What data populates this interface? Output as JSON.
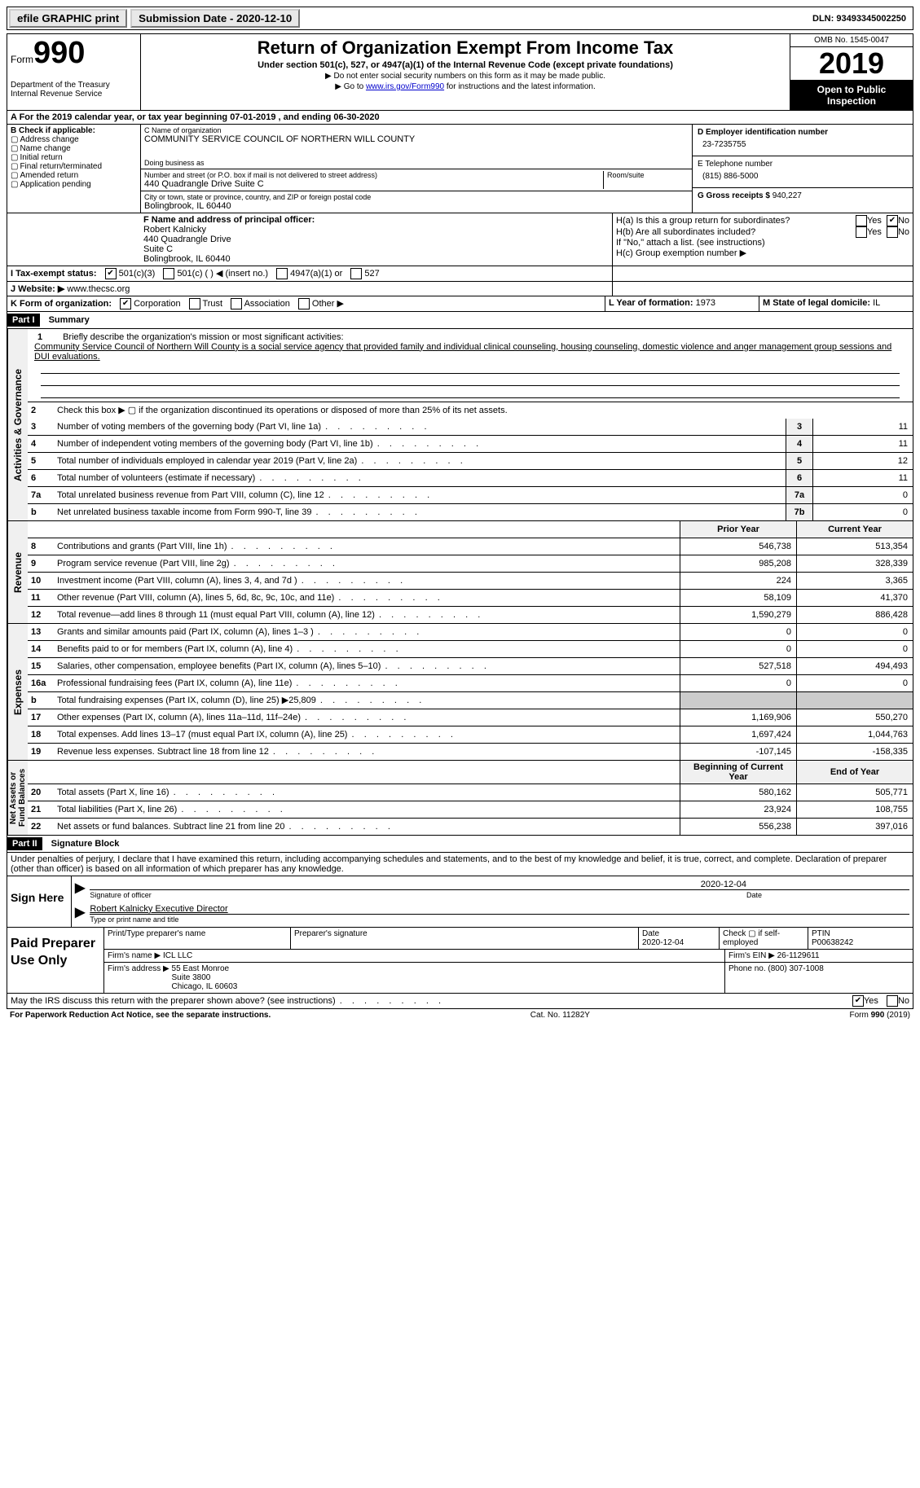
{
  "top": {
    "efile": "efile GRAPHIC print",
    "submission": "Submission Date - 2020-12-10",
    "dln_label": "DLN:",
    "dln": "93493345002250"
  },
  "header": {
    "form": "Form",
    "form_num": "990",
    "dept": "Department of the Treasury\nInternal Revenue Service",
    "title": "Return of Organization Exempt From Income Tax",
    "sub": "Under section 501(c), 527, or 4947(a)(1) of the Internal Revenue Code (except private foundations)",
    "note1": "▶ Do not enter social security numbers on this form as it may be made public.",
    "note2_pre": "▶ Go to ",
    "note2_link": "www.irs.gov/Form990",
    "note2_post": " for instructions and the latest information.",
    "omb": "OMB No. 1545-0047",
    "year": "2019",
    "inspection": "Open to Public Inspection"
  },
  "line_a": "A For the 2019 calendar year, or tax year beginning 07-01-2019    , and ending 06-30-2020",
  "block_b": {
    "title": "B Check if applicable:",
    "items": [
      "Address change",
      "Name change",
      "Initial return",
      "Final return/terminated",
      "Amended return",
      "Application pending"
    ]
  },
  "block_c": {
    "name_label": "C Name of organization",
    "name": "COMMUNITY SERVICE COUNCIL OF NORTHERN WILL COUNTY",
    "dba": "Doing business as",
    "street_label": "Number and street (or P.O. box if mail is not delivered to street address)",
    "street": "440 Quadrangle Drive Suite C",
    "room": "Room/suite",
    "city_label": "City or town, state or province, country, and ZIP or foreign postal code",
    "city": "Bolingbrook, IL  60440"
  },
  "block_d": {
    "label": "D Employer identification number",
    "value": "23-7235755"
  },
  "block_e": {
    "label": "E Telephone number",
    "value": "(815) 886-5000"
  },
  "block_g": {
    "label": "G Gross receipts $",
    "value": "940,227"
  },
  "block_f": {
    "label": "F  Name and address of principal officer:",
    "name": "Robert Kalnicky",
    "addr1": "440 Quadrangle Drive",
    "addr2": "Suite C",
    "addr3": "Bolingbrook, IL  60440"
  },
  "block_h": {
    "ha": "H(a)  Is this a group return for subordinates?",
    "hb": "H(b)  Are all subordinates included?",
    "note": "If \"No,\" attach a list. (see instructions)",
    "hc": "H(c)  Group exemption number ▶"
  },
  "tax_status": {
    "label": "I  Tax-exempt status:",
    "opts": [
      "501(c)(3)",
      "501(c) (  ) ◀ (insert no.)",
      "4947(a)(1) or",
      "527"
    ]
  },
  "website": {
    "label": "J  Website: ▶",
    "value": "www.thecsc.org"
  },
  "line_k": {
    "label": "K Form of organization:",
    "opts": [
      "Corporation",
      "Trust",
      "Association",
      "Other ▶"
    ]
  },
  "line_l": {
    "label": "L Year of formation:",
    "value": "1973"
  },
  "line_m": {
    "label": "M State of legal domicile:",
    "value": "IL"
  },
  "part1": {
    "title": "Summary",
    "l1_label": "Briefly describe the organization's mission or most significant activities:",
    "l1_text": "Community Service Council of Northern Will County is a social service agency that provided family and individual clinical counseling, housing counseling, domestic violence and anger management group sessions and DUI evaluations.",
    "l2": "Check this box ▶ ▢  if the organization discontinued its operations or disposed of more than 25% of its net assets.",
    "lines_simple": [
      {
        "n": "3",
        "t": "Number of voting members of the governing body (Part VI, line 1a)",
        "box": "3",
        "v": "11"
      },
      {
        "n": "4",
        "t": "Number of independent voting members of the governing body (Part VI, line 1b)",
        "box": "4",
        "v": "11"
      },
      {
        "n": "5",
        "t": "Total number of individuals employed in calendar year 2019 (Part V, line 2a)",
        "box": "5",
        "v": "12"
      },
      {
        "n": "6",
        "t": "Total number of volunteers (estimate if necessary)",
        "box": "6",
        "v": "11"
      },
      {
        "n": "7a",
        "t": "Total unrelated business revenue from Part VIII, column (C), line 12",
        "box": "7a",
        "v": "0"
      },
      {
        "n": "b",
        "t": "Net unrelated business taxable income from Form 990-T, line 39",
        "box": "7b",
        "v": "0"
      }
    ],
    "col_prior": "Prior Year",
    "col_current": "Current Year",
    "revenue": [
      {
        "n": "8",
        "t": "Contributions and grants (Part VIII, line 1h)",
        "p": "546,738",
        "c": "513,354"
      },
      {
        "n": "9",
        "t": "Program service revenue (Part VIII, line 2g)",
        "p": "985,208",
        "c": "328,339"
      },
      {
        "n": "10",
        "t": "Investment income (Part VIII, column (A), lines 3, 4, and 7d )",
        "p": "224",
        "c": "3,365"
      },
      {
        "n": "11",
        "t": "Other revenue (Part VIII, column (A), lines 5, 6d, 8c, 9c, 10c, and 11e)",
        "p": "58,109",
        "c": "41,370"
      },
      {
        "n": "12",
        "t": "Total revenue—add lines 8 through 11 (must equal Part VIII, column (A), line 12)",
        "p": "1,590,279",
        "c": "886,428"
      }
    ],
    "expenses": [
      {
        "n": "13",
        "t": "Grants and similar amounts paid (Part IX, column (A), lines 1–3 )",
        "p": "0",
        "c": "0"
      },
      {
        "n": "14",
        "t": "Benefits paid to or for members (Part IX, column (A), line 4)",
        "p": "0",
        "c": "0"
      },
      {
        "n": "15",
        "t": "Salaries, other compensation, employee benefits (Part IX, column (A), lines 5–10)",
        "p": "527,518",
        "c": "494,493"
      },
      {
        "n": "16a",
        "t": "Professional fundraising fees (Part IX, column (A), line 11e)",
        "p": "0",
        "c": "0"
      },
      {
        "n": "b",
        "t": "Total fundraising expenses (Part IX, column (D), line 25) ▶25,809",
        "p": "shaded",
        "c": "shaded"
      },
      {
        "n": "17",
        "t": "Other expenses (Part IX, column (A), lines 11a–11d, 11f–24e)",
        "p": "1,169,906",
        "c": "550,270"
      },
      {
        "n": "18",
        "t": "Total expenses. Add lines 13–17 (must equal Part IX, column (A), line 25)",
        "p": "1,697,424",
        "c": "1,044,763"
      },
      {
        "n": "19",
        "t": "Revenue less expenses. Subtract line 18 from line 12",
        "p": "-107,145",
        "c": "-158,335"
      }
    ],
    "col_begin": "Beginning of Current Year",
    "col_end": "End of Year",
    "netassets": [
      {
        "n": "20",
        "t": "Total assets (Part X, line 16)",
        "p": "580,162",
        "c": "505,771"
      },
      {
        "n": "21",
        "t": "Total liabilities (Part X, line 26)",
        "p": "23,924",
        "c": "108,755"
      },
      {
        "n": "22",
        "t": "Net assets or fund balances. Subtract line 21 from line 20",
        "p": "556,238",
        "c": "397,016"
      }
    ]
  },
  "part2": {
    "title": "Signature Block",
    "perjury": "Under penalties of perjury, I declare that I have examined this return, including accompanying schedules and statements, and to the best of my knowledge and belief, it is true, correct, and complete. Declaration of preparer (other than officer) is based on all information of which preparer has any knowledge.",
    "sign_here": "Sign Here",
    "date": "2020-12-04",
    "sig_officer": "Signature of officer",
    "date_label": "Date",
    "officer": "Robert Kalnicky  Executive Director",
    "officer_label": "Type or print name and title"
  },
  "preparer": {
    "title": "Paid Preparer Use Only",
    "h1": "Print/Type preparer's name",
    "h2": "Preparer's signature",
    "h3": "Date",
    "h3v": "2020-12-04",
    "h4": "Check ▢ if self-employed",
    "h5": "PTIN",
    "h5v": "P00638242",
    "firm_name_l": "Firm's name    ▶",
    "firm_name": "ICL LLC",
    "firm_ein_l": "Firm's EIN ▶",
    "firm_ein": "26-1129611",
    "firm_addr_l": "Firm's address ▶",
    "firm_addr": "55 East Monroe\nSuite 3800\nChicago, IL  60603",
    "phone_l": "Phone no.",
    "phone": "(800) 307-1008"
  },
  "discuss": "May the IRS discuss this return with the preparer shown above? (see instructions)",
  "footer": {
    "left": "For Paperwork Reduction Act Notice, see the separate instructions.",
    "mid": "Cat. No. 11282Y",
    "right": "Form 990 (2019)"
  }
}
